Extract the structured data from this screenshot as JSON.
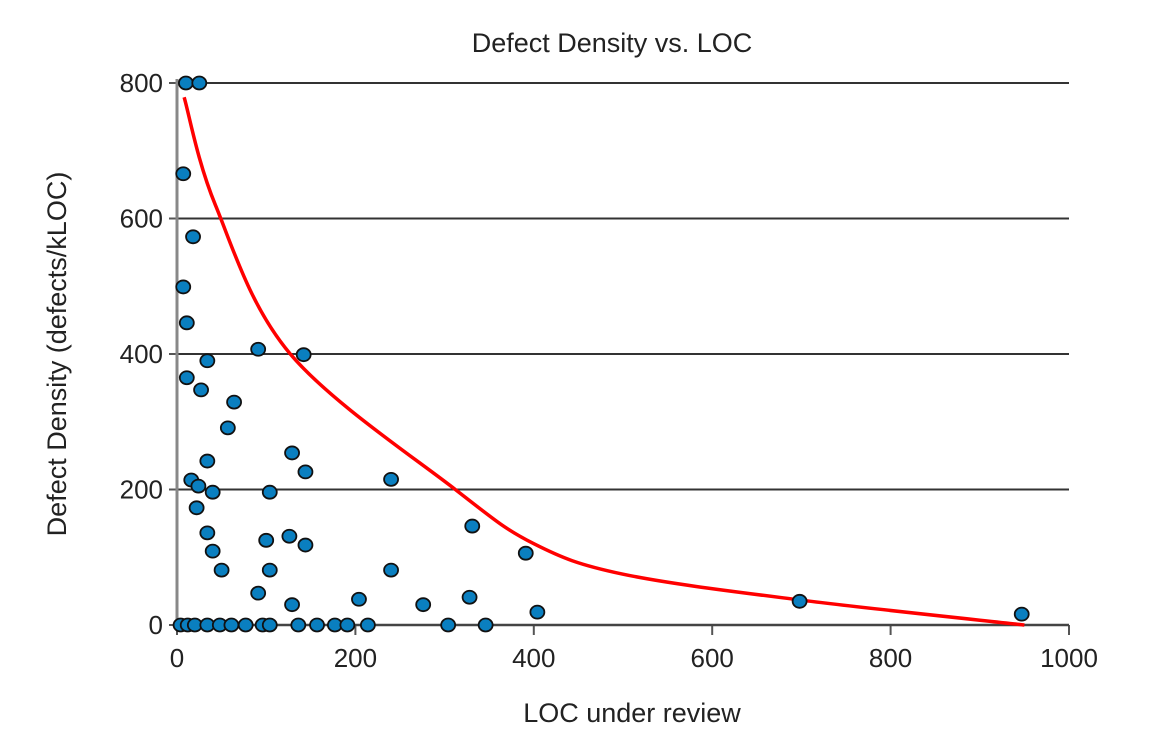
{
  "chart_data": {
    "type": "scatter",
    "title": "Defect Density vs. LOC",
    "xlabel": "LOC under review",
    "ylabel": "Defect Density (defects/kLOC)",
    "xlim": [
      0,
      1000
    ],
    "ylim": [
      0,
      800
    ],
    "xticks": [
      0,
      200,
      400,
      600,
      800,
      1000
    ],
    "yticks": [
      0,
      200,
      400,
      600,
      800
    ],
    "grid": "horizontal",
    "legend": "none",
    "colors": {
      "points": "#0a7fc0",
      "point_edge": "#111111",
      "trend": "#ff0000",
      "grid": "#333333"
    },
    "points": [
      [
        10,
        800
      ],
      [
        25,
        800
      ],
      [
        7,
        666
      ],
      [
        18,
        573
      ],
      [
        7,
        499
      ],
      [
        11,
        446
      ],
      [
        91,
        407
      ],
      [
        142,
        399
      ],
      [
        34,
        390
      ],
      [
        11,
        365
      ],
      [
        27,
        347
      ],
      [
        64,
        329
      ],
      [
        57,
        291
      ],
      [
        129,
        254
      ],
      [
        34,
        242
      ],
      [
        144,
        226
      ],
      [
        240,
        215
      ],
      [
        16,
        214
      ],
      [
        24,
        205
      ],
      [
        40,
        196
      ],
      [
        104,
        196
      ],
      [
        22,
        173
      ],
      [
        331,
        146
      ],
      [
        34,
        136
      ],
      [
        126,
        131
      ],
      [
        144,
        118
      ],
      [
        100,
        125
      ],
      [
        40,
        109
      ],
      [
        391,
        106
      ],
      [
        50,
        81
      ],
      [
        104,
        81
      ],
      [
        240,
        81
      ],
      [
        91,
        47
      ],
      [
        204,
        38
      ],
      [
        328,
        41
      ],
      [
        129,
        30
      ],
      [
        276,
        30
      ],
      [
        404,
        19
      ],
      [
        698,
        35
      ],
      [
        947,
        16
      ],
      [
        4,
        0
      ],
      [
        12,
        0
      ],
      [
        20,
        0
      ],
      [
        34,
        0
      ],
      [
        48,
        0
      ],
      [
        61,
        0
      ],
      [
        77,
        0
      ],
      [
        96,
        0
      ],
      [
        104,
        0
      ],
      [
        136,
        0
      ],
      [
        157,
        0
      ],
      [
        177,
        0
      ],
      [
        191,
        0
      ],
      [
        214,
        0
      ],
      [
        304,
        0
      ],
      [
        346,
        0
      ]
    ],
    "trendline": [
      [
        8,
        779
      ],
      [
        43,
        620
      ],
      [
        127,
        400
      ],
      [
        312,
        200
      ],
      [
        400,
        120
      ],
      [
        500,
        75
      ],
      [
        698,
        37
      ],
      [
        950,
        0
      ]
    ]
  }
}
